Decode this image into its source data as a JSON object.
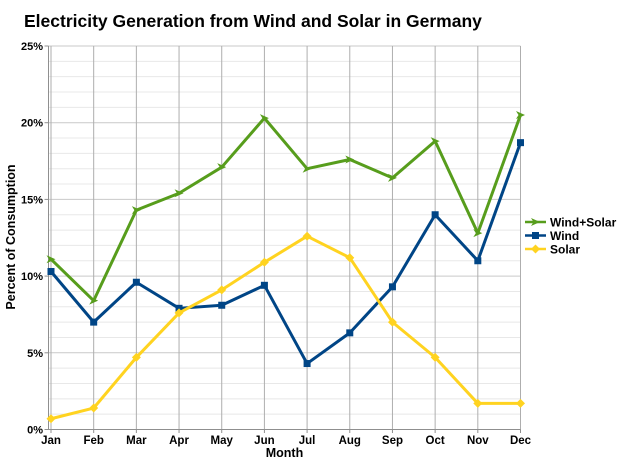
{
  "chart_data": {
    "type": "line",
    "title": "Electricity Generation from Wind and Solar in Germany",
    "xlabel": "Month",
    "ylabel": "Percent of Consumption",
    "categories": [
      "Jan",
      "Feb",
      "Mar",
      "Apr",
      "May",
      "Jun",
      "Jul",
      "Aug",
      "Sep",
      "Oct",
      "Nov",
      "Dec"
    ],
    "series": [
      {
        "name": "Wind+Solar",
        "color": "#579D1C",
        "marker": "arrow",
        "values": [
          11.1,
          8.4,
          14.3,
          15.4,
          17.1,
          20.3,
          17.0,
          17.6,
          16.4,
          18.8,
          12.8,
          20.5
        ]
      },
      {
        "name": "Wind",
        "color": "#004586",
        "marker": "square",
        "values": [
          10.3,
          7.0,
          9.6,
          7.9,
          8.1,
          9.4,
          4.3,
          6.3,
          9.3,
          14.0,
          11.0,
          18.7
        ]
      },
      {
        "name": "Solar",
        "color": "#FFD320",
        "marker": "diamond",
        "values": [
          0.7,
          1.4,
          4.7,
          7.6,
          9.1,
          10.9,
          12.6,
          11.2,
          7.0,
          4.7,
          1.7,
          1.7
        ]
      }
    ],
    "ylim": [
      0,
      25
    ],
    "y_major_step": 5,
    "y_minor_step": 1,
    "y_tick_labels": [
      "0%",
      "5%",
      "10%",
      "15%",
      "20%",
      "25%"
    ],
    "grid": true,
    "legend_position": "right"
  },
  "colors": {
    "background": "#ffffff",
    "text": "#000000",
    "grid_minor": "#e8e8e8",
    "grid_major": "#c9c9c9",
    "grid_vertical": "#aeaeae",
    "axis": "#8f8f8f"
  }
}
